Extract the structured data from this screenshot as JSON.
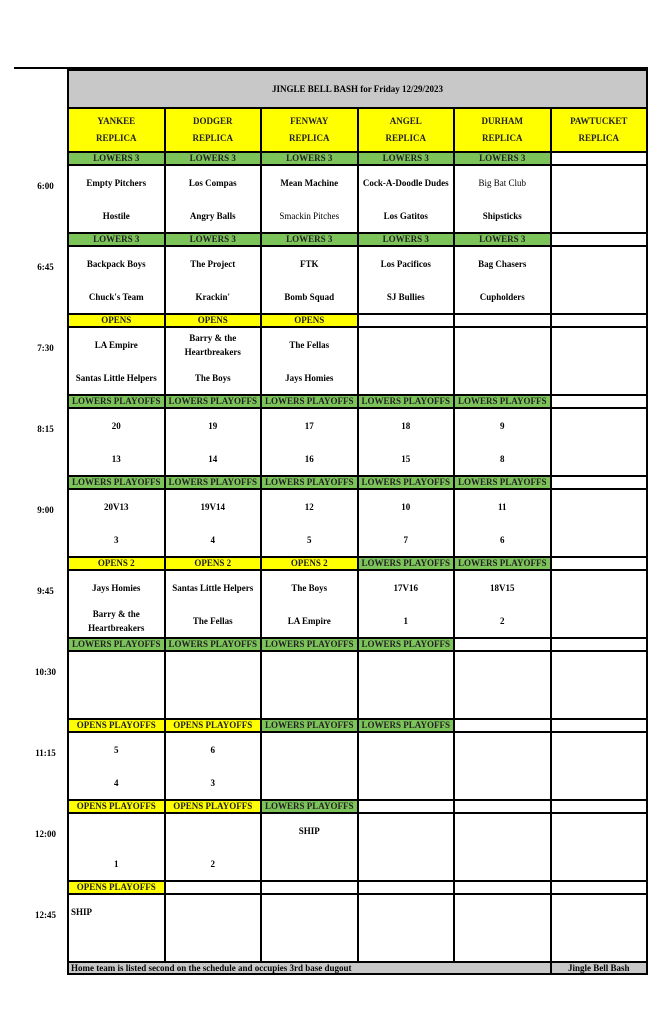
{
  "title": "JINGLE BELL BASH for Friday 12/29/2023",
  "colors": {
    "green": "#7cc35a",
    "yellow": "#ffff00",
    "gray": "#c8c8c8"
  },
  "fields": [
    [
      "YANKEE",
      "REPLICA"
    ],
    [
      "DODGER",
      "REPLICA"
    ],
    [
      "FENWAY",
      "REPLICA"
    ],
    [
      "ANGEL",
      "REPLICA"
    ],
    [
      "DURHAM",
      "REPLICA"
    ],
    [
      "PAWTUCKET",
      "REPLICA"
    ]
  ],
  "slots": [
    {
      "time": "6:00",
      "labels": [
        [
          "LOWERS 3",
          "green"
        ],
        [
          "LOWERS 3",
          "green"
        ],
        [
          "LOWERS 3",
          "green"
        ],
        [
          "LOWERS 3",
          "green"
        ],
        [
          "LOWERS 3",
          "green"
        ],
        [
          "",
          ""
        ]
      ],
      "games": [
        [
          "Empty Pitchers",
          "Hostile"
        ],
        [
          "Los Compas",
          "Angry Balls"
        ],
        [
          "Mean Machine",
          "Smackin Pitches"
        ],
        [
          "Cock-A-Doodle Dudes",
          "Los Gatitos"
        ],
        [
          "Big Bat Club",
          "Shipsticks"
        ],
        [
          "",
          ""
        ]
      ]
    },
    {
      "time": "6:45",
      "labels": [
        [
          "LOWERS 3",
          "green"
        ],
        [
          "LOWERS 3",
          "green"
        ],
        [
          "LOWERS 3",
          "green"
        ],
        [
          "LOWERS 3",
          "green"
        ],
        [
          "LOWERS 3",
          "green"
        ],
        [
          "",
          ""
        ]
      ],
      "games": [
        [
          "Backpack Boys",
          "Chuck's Team"
        ],
        [
          "The Project",
          "Krackin'"
        ],
        [
          "FTK",
          "Bomb Squad"
        ],
        [
          "Los Pacificos",
          "SJ Bullies"
        ],
        [
          "Bag Chasers",
          "Cupholders"
        ],
        [
          "",
          ""
        ]
      ]
    },
    {
      "time": "7:30",
      "labels": [
        [
          "OPENS",
          "yellow"
        ],
        [
          "OPENS",
          "yellow"
        ],
        [
          "OPENS",
          "yellow"
        ],
        [
          "",
          ""
        ],
        [
          "",
          ""
        ],
        [
          "",
          ""
        ]
      ],
      "games": [
        [
          "LA Empire",
          "Santas Little Helpers"
        ],
        [
          "Barry & the Heartbreakers",
          "The Boys"
        ],
        [
          "The Fellas",
          "Jays Homies"
        ],
        [
          "",
          ""
        ],
        [
          "",
          ""
        ],
        [
          "",
          ""
        ]
      ]
    },
    {
      "time": "8:15",
      "labels": [
        [
          "LOWERS PLAYOFFS",
          "green"
        ],
        [
          "LOWERS PLAYOFFS",
          "green"
        ],
        [
          "LOWERS PLAYOFFS",
          "green"
        ],
        [
          "LOWERS PLAYOFFS",
          "green"
        ],
        [
          "LOWERS PLAYOFFS",
          "green"
        ],
        [
          "",
          ""
        ]
      ],
      "games": [
        [
          "20",
          "13"
        ],
        [
          "19",
          "14"
        ],
        [
          "17",
          "16"
        ],
        [
          "18",
          "15"
        ],
        [
          "9",
          "8"
        ],
        [
          "",
          ""
        ]
      ]
    },
    {
      "time": "9:00",
      "labels": [
        [
          "LOWERS PLAYOFFS",
          "green"
        ],
        [
          "LOWERS PLAYOFFS",
          "green"
        ],
        [
          "LOWERS PLAYOFFS",
          "green"
        ],
        [
          "LOWERS PLAYOFFS",
          "green"
        ],
        [
          "LOWERS PLAYOFFS",
          "green"
        ],
        [
          "",
          ""
        ]
      ],
      "games": [
        [
          "20V13",
          "3"
        ],
        [
          "19V14",
          "4"
        ],
        [
          "12",
          "5"
        ],
        [
          "10",
          "7"
        ],
        [
          "11",
          "6"
        ],
        [
          "",
          ""
        ]
      ]
    },
    {
      "time": "9:45",
      "labels": [
        [
          "OPENS 2",
          "yellow"
        ],
        [
          "OPENS 2",
          "yellow"
        ],
        [
          "OPENS 2",
          "yellow"
        ],
        [
          "LOWERS PLAYOFFS",
          "green"
        ],
        [
          "LOWERS PLAYOFFS",
          "green"
        ],
        [
          "",
          ""
        ]
      ],
      "games": [
        [
          "Jays Homies",
          "Barry & the Heartbreakers"
        ],
        [
          "Santas Little Helpers",
          "The Fellas"
        ],
        [
          "The Boys",
          "LA Empire"
        ],
        [
          "17V16",
          "1"
        ],
        [
          "18V15",
          "2"
        ],
        [
          "",
          ""
        ]
      ]
    },
    {
      "time": "10:30",
      "labels": [
        [
          "LOWERS PLAYOFFS",
          "green"
        ],
        [
          "LOWERS PLAYOFFS",
          "green"
        ],
        [
          "LOWERS PLAYOFFS",
          "green"
        ],
        [
          "LOWERS PLAYOFFS",
          "green"
        ],
        [
          "",
          ""
        ],
        [
          "",
          ""
        ]
      ],
      "games": [
        [
          "",
          ""
        ],
        [
          "",
          ""
        ],
        [
          "",
          ""
        ],
        [
          "",
          ""
        ],
        [
          "",
          ""
        ],
        [
          "",
          ""
        ]
      ]
    },
    {
      "time": "11:15",
      "labels": [
        [
          "OPENS PLAYOFFS",
          "yellow"
        ],
        [
          "OPENS PLAYOFFS",
          "yellow"
        ],
        [
          "LOWERS PLAYOFFS",
          "green"
        ],
        [
          "LOWERS PLAYOFFS",
          "green"
        ],
        [
          "",
          ""
        ],
        [
          "",
          ""
        ]
      ],
      "games": [
        [
          "5",
          "4"
        ],
        [
          "6",
          "3"
        ],
        [
          "",
          ""
        ],
        [
          "",
          ""
        ],
        [
          "",
          ""
        ],
        [
          "",
          ""
        ]
      ]
    },
    {
      "time": "12:00",
      "labels": [
        [
          "OPENS PLAYOFFS",
          "yellow"
        ],
        [
          "OPENS PLAYOFFS",
          "yellow"
        ],
        [
          "LOWERS PLAYOFFS",
          "green"
        ],
        [
          "",
          ""
        ],
        [
          "",
          ""
        ],
        [
          "",
          ""
        ]
      ],
      "games": [
        [
          "",
          "1"
        ],
        [
          "",
          "2"
        ],
        [
          "SHIP",
          ""
        ],
        [
          "",
          ""
        ],
        [
          "",
          ""
        ],
        [
          "",
          ""
        ]
      ]
    },
    {
      "time": "12:45",
      "labels": [
        [
          "OPENS PLAYOFFS",
          "yellow"
        ],
        [
          "",
          ""
        ],
        [
          "",
          ""
        ],
        [
          "",
          ""
        ],
        [
          "",
          ""
        ],
        [
          "",
          ""
        ]
      ],
      "games": [
        [
          "SHIP",
          ""
        ],
        [
          "",
          ""
        ],
        [
          "",
          ""
        ],
        [
          "",
          ""
        ],
        [
          "",
          ""
        ],
        [
          "",
          ""
        ]
      ]
    }
  ],
  "footer": {
    "note": "Home team is listed second on the schedule and occupies 3rd base dugout",
    "brand": "Jingle Bell Bash"
  }
}
